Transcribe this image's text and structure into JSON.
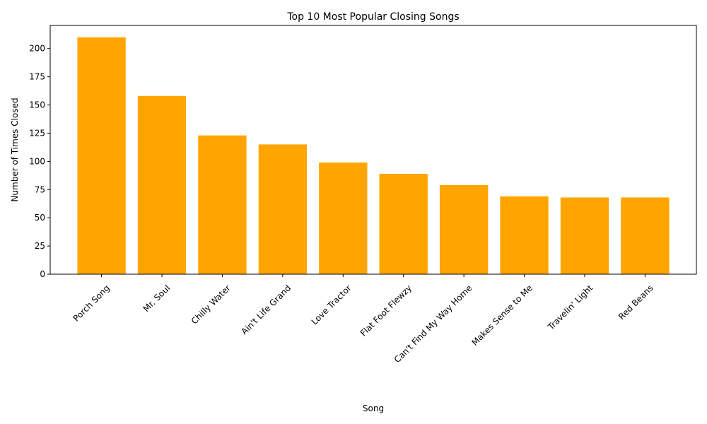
{
  "chart_data": {
    "type": "bar",
    "title": "Top 10 Most Popular Closing Songs",
    "xlabel": "Song",
    "ylabel": "Number of Times Closed",
    "categories": [
      "Porch Song",
      "Mr. Soul",
      "Chilly Water",
      "Ain't Life Grand",
      "Love Tractor",
      "Flat Foot Flewzy",
      "Can't Find My Way Home",
      "Makes Sense to Me",
      "Travelin' Light",
      "Red Beans"
    ],
    "values": [
      210,
      158,
      123,
      115,
      99,
      89,
      79,
      69,
      68,
      68
    ],
    "ylim": [
      0,
      220.5
    ],
    "yticks": [
      0,
      25,
      50,
      75,
      100,
      125,
      150,
      175,
      200
    ],
    "bar_color": "#ffa500",
    "grid": false,
    "legend": false
  }
}
